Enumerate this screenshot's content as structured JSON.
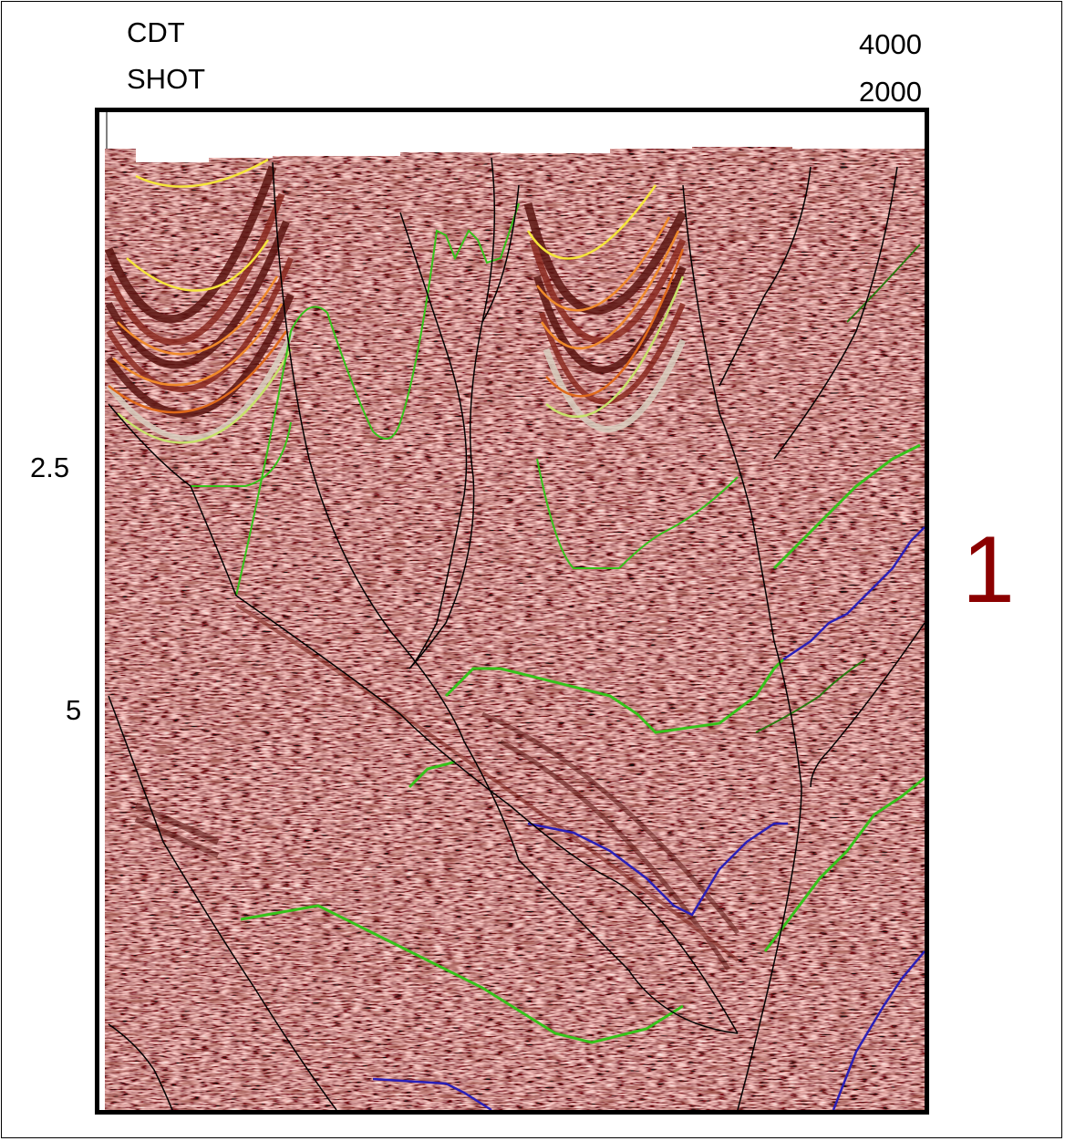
{
  "header": {
    "cdt_label": "CDT",
    "shot_label": "SHOT",
    "cdt_value": "4000",
    "shot_value": "2000"
  },
  "axis": {
    "tick_1": "2.5",
    "tick_2": "5"
  },
  "panel": {
    "number": "1"
  },
  "colors": {
    "seismic_base": "#a78a7c",
    "seismic_dark": "#5a1410",
    "seismic_red": "#c0392b",
    "seismic_light": "#e4dfd2",
    "fault": "#000000",
    "horizon_green": "#36c21a",
    "horizon_blue": "#2a1fb8",
    "horizon_yellow": "#f5e63a",
    "horizon_orange": "#f08a2a",
    "panel_number": "#8b0000"
  }
}
